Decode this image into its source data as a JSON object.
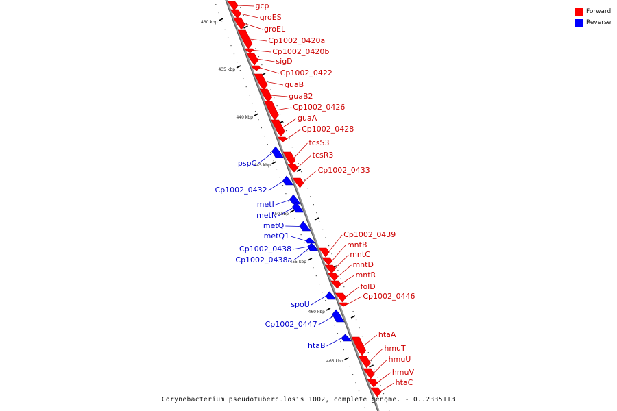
{
  "colors": {
    "forward": "#ff0000",
    "reverse": "#0000ff",
    "forward_label": "#cc0000",
    "reverse_label": "#0000cc",
    "backbone": "#999999"
  },
  "legend": [
    {
      "label": "Forward",
      "color": "#ff0000"
    },
    {
      "label": "Reverse",
      "color": "#0000ff"
    }
  ],
  "caption": "Corynebacterium pseudotuberculosis 1002, complete genome. - 0..2335113",
  "ticks": [
    {
      "label": "430 kbp"
    },
    {
      "label": "435 kbp"
    },
    {
      "label": "440 kbp"
    },
    {
      "label": "445 kbp"
    },
    {
      "label": "450 kbp"
    },
    {
      "label": "455 kbp"
    },
    {
      "label": "460 kbp"
    },
    {
      "label": "465 kbp"
    }
  ],
  "forward_features": [
    {
      "name": "gcp"
    },
    {
      "name": "groES"
    },
    {
      "name": "groEL"
    },
    {
      "name": "Cp1002_0420a"
    },
    {
      "name": "Cp1002_0420b"
    },
    {
      "name": "sigD"
    },
    {
      "name": "Cp1002_0422"
    },
    {
      "name": "guaB"
    },
    {
      "name": "guaB2"
    },
    {
      "name": "Cp1002_0426"
    },
    {
      "name": "guaA"
    },
    {
      "name": "Cp1002_0428"
    },
    {
      "name": "tcsS3"
    },
    {
      "name": "tcsR3"
    },
    {
      "name": "Cp1002_0433"
    },
    {
      "name": "Cp1002_0439"
    },
    {
      "name": "mntB"
    },
    {
      "name": "mntC"
    },
    {
      "name": "mntD"
    },
    {
      "name": "mntR"
    },
    {
      "name": "folD"
    },
    {
      "name": "Cp1002_0446"
    },
    {
      "name": "htaA"
    },
    {
      "name": "hmuT"
    },
    {
      "name": "hmuU"
    },
    {
      "name": "hmuV"
    },
    {
      "name": "htaC"
    }
  ],
  "reverse_features": [
    {
      "name": "pspC"
    },
    {
      "name": "Cp1002_0432"
    },
    {
      "name": "metI"
    },
    {
      "name": "metN"
    },
    {
      "name": "metQ"
    },
    {
      "name": "metQ1"
    },
    {
      "name": "Cp1002_0438"
    },
    {
      "name": "Cp1002_0438a"
    },
    {
      "name": "spoU"
    },
    {
      "name": "Cp1002_0447"
    },
    {
      "name": "htaB"
    }
  ]
}
